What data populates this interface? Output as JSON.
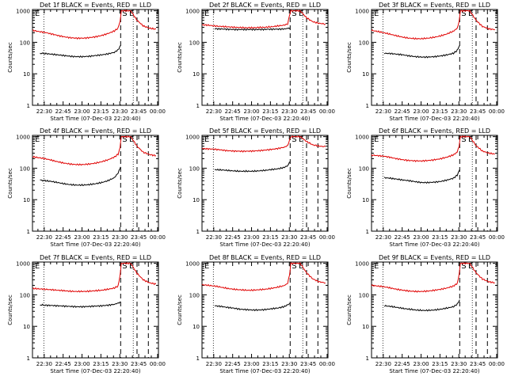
{
  "colors": {
    "events": "#000000",
    "lld": "#e00000",
    "axis": "#000000",
    "background": "#ffffff"
  },
  "common": {
    "ylabel": "Counts/sec",
    "xlabel": "Start Time (07-Dec-03 22:20:40)",
    "x_ticks": [
      "22:30",
      "22:45",
      "23:00",
      "23:15",
      "23:30",
      "23:45",
      "00:00"
    ],
    "y_ticks": [
      "1",
      "10",
      "100",
      "1000"
    ],
    "x_range_min_after_start": [
      0,
      100
    ],
    "y_range_log": [
      1,
      1100
    ],
    "marker_labels": {
      "start": "S",
      "end": "E",
      "left_edge": "E"
    }
  },
  "chart_data": [
    {
      "type": "line",
      "title": "Det 1f BLACK = Events, RED = LLD",
      "markers": {
        "dotted": [
          9,
          80
        ],
        "dashed": [
          70,
          83,
          92
        ]
      },
      "series": [
        {
          "name": "BLACK = Events",
          "x": [
            6,
            10,
            15,
            20,
            25,
            30,
            35,
            40,
            45,
            50,
            55,
            60,
            65,
            68,
            70
          ],
          "values": [
            45,
            44,
            42,
            40,
            38,
            36,
            35,
            35,
            36,
            38,
            40,
            43,
            48,
            58,
            80
          ]
        },
        {
          "name": "RED = LLD",
          "x": [
            0,
            5,
            10,
            15,
            20,
            25,
            30,
            35,
            40,
            45,
            50,
            55,
            60,
            65,
            68,
            69.5,
            70.5,
            78,
            83,
            88,
            93,
            98
          ],
          "values": [
            240,
            220,
            205,
            185,
            165,
            150,
            140,
            135,
            135,
            140,
            150,
            165,
            190,
            230,
            280,
            450,
            1000,
            1000,
            500,
            330,
            280,
            260
          ]
        }
      ]
    },
    {
      "type": "line",
      "title": "Det 2f BLACK = Events, RED = LLD",
      "markers": {
        "dotted": [
          9,
          80
        ],
        "dashed": [
          70,
          83,
          92
        ]
      },
      "series": [
        {
          "name": "BLACK = Events",
          "x": [
            10,
            15,
            20,
            25,
            30,
            35,
            40,
            45,
            50,
            55,
            60,
            65,
            68,
            70
          ],
          "values": [
            270,
            265,
            260,
            255,
            255,
            255,
            255,
            255,
            258,
            260,
            262,
            265,
            275,
            290
          ]
        },
        {
          "name": "RED = LLD",
          "x": [
            0,
            5,
            10,
            15,
            20,
            25,
            30,
            35,
            40,
            45,
            50,
            55,
            60,
            65,
            68,
            69.5,
            70.5,
            78,
            83,
            88,
            93,
            98
          ],
          "values": [
            360,
            350,
            330,
            320,
            310,
            300,
            295,
            290,
            290,
            295,
            300,
            310,
            330,
            350,
            380,
            700,
            1000,
            1000,
            600,
            450,
            400,
            380
          ]
        }
      ]
    },
    {
      "type": "line",
      "title": "Det 3f BLACK = Events, RED = LLD",
      "markers": {
        "dotted": [
          9,
          80
        ],
        "dashed": [
          70,
          83,
          92
        ]
      },
      "series": [
        {
          "name": "BLACK = Events",
          "x": [
            10,
            15,
            20,
            25,
            30,
            35,
            40,
            45,
            50,
            55,
            60,
            65,
            68,
            70
          ],
          "values": [
            45,
            44,
            42,
            40,
            37,
            35,
            34,
            34,
            35,
            37,
            40,
            45,
            55,
            80
          ]
        },
        {
          "name": "RED = LLD",
          "x": [
            0,
            5,
            10,
            15,
            20,
            25,
            30,
            35,
            40,
            45,
            50,
            55,
            60,
            65,
            68,
            69.5,
            70.5,
            78,
            83,
            88,
            93,
            98
          ],
          "values": [
            240,
            220,
            200,
            180,
            160,
            145,
            135,
            130,
            130,
            135,
            145,
            160,
            185,
            225,
            280,
            450,
            1000,
            1000,
            500,
            320,
            270,
            250
          ]
        }
      ]
    },
    {
      "type": "line",
      "title": "Det 4f BLACK = Events, RED = LLD",
      "markers": {
        "dotted": [
          9,
          80
        ],
        "dashed": [
          70,
          83,
          92
        ]
      },
      "series": [
        {
          "name": "BLACK = Events",
          "x": [
            6,
            10,
            15,
            20,
            25,
            30,
            35,
            40,
            45,
            50,
            55,
            60,
            65,
            68,
            70
          ],
          "values": [
            42,
            40,
            38,
            35,
            32,
            30,
            29,
            29,
            30,
            32,
            35,
            40,
            50,
            70,
            110
          ]
        },
        {
          "name": "RED = LLD",
          "x": [
            0,
            5,
            10,
            15,
            20,
            25,
            30,
            35,
            40,
            45,
            50,
            55,
            60,
            65,
            68,
            69.5,
            70.5,
            78,
            83,
            88,
            93,
            98
          ],
          "values": [
            230,
            215,
            200,
            180,
            160,
            145,
            135,
            130,
            130,
            135,
            145,
            160,
            185,
            225,
            280,
            450,
            1000,
            1000,
            500,
            320,
            270,
            250
          ]
        }
      ]
    },
    {
      "type": "line",
      "title": "Det 5f BLACK = Events, RED = LLD",
      "markers": {
        "dotted": [
          9,
          80
        ],
        "dashed": [
          70,
          83,
          92
        ]
      },
      "series": [
        {
          "name": "BLACK = Events",
          "x": [
            10,
            15,
            20,
            25,
            30,
            35,
            40,
            45,
            50,
            55,
            60,
            65,
            68,
            70
          ],
          "values": [
            90,
            88,
            85,
            82,
            80,
            80,
            80,
            82,
            85,
            90,
            95,
            105,
            120,
            160
          ]
        },
        {
          "name": "RED = LLD",
          "x": [
            0,
            5,
            10,
            15,
            20,
            25,
            30,
            35,
            40,
            45,
            50,
            55,
            60,
            65,
            68,
            69.5,
            70.5,
            78,
            83,
            88,
            93,
            98
          ],
          "values": [
            420,
            410,
            400,
            380,
            360,
            350,
            345,
            345,
            350,
            360,
            375,
            395,
            420,
            460,
            520,
            800,
            1000,
            1000,
            700,
            550,
            500,
            480
          ]
        }
      ]
    },
    {
      "type": "line",
      "title": "Det 6f BLACK = Events, RED = LLD",
      "markers": {
        "dotted": [
          9,
          80
        ],
        "dashed": [
          70,
          83,
          92
        ]
      },
      "series": [
        {
          "name": "BLACK = Events",
          "x": [
            10,
            15,
            20,
            25,
            30,
            35,
            40,
            45,
            50,
            55,
            60,
            65,
            68,
            70
          ],
          "values": [
            50,
            48,
            45,
            42,
            40,
            37,
            35,
            35,
            36,
            38,
            42,
            48,
            60,
            90
          ]
        },
        {
          "name": "RED = LLD",
          "x": [
            0,
            5,
            10,
            15,
            20,
            25,
            30,
            35,
            40,
            45,
            50,
            55,
            60,
            65,
            68,
            69.5,
            70.5,
            78,
            83,
            88,
            93,
            98
          ],
          "values": [
            260,
            250,
            240,
            220,
            200,
            185,
            175,
            170,
            170,
            175,
            185,
            200,
            225,
            265,
            320,
            500,
            1000,
            1000,
            520,
            350,
            300,
            280
          ]
        }
      ]
    },
    {
      "type": "line",
      "title": "Det 7f BLACK = Events, RED = LLD",
      "markers": {
        "dotted": [
          9,
          80
        ],
        "dashed": [
          70,
          83,
          92
        ]
      },
      "series": [
        {
          "name": "BLACK = Events",
          "x": [
            6,
            10,
            15,
            20,
            25,
            30,
            35,
            40,
            45,
            50,
            55,
            60,
            65,
            68,
            70
          ],
          "values": [
            48,
            47,
            46,
            45,
            44,
            43,
            42,
            42,
            43,
            44,
            45,
            47,
            50,
            55,
            60
          ]
        },
        {
          "name": "RED = LLD",
          "x": [
            0,
            5,
            10,
            15,
            20,
            25,
            30,
            35,
            40,
            45,
            50,
            55,
            60,
            65,
            68,
            69.5,
            70.5,
            78,
            83,
            88,
            93,
            98
          ],
          "values": [
            160,
            155,
            150,
            145,
            140,
            135,
            130,
            128,
            128,
            130,
            135,
            140,
            150,
            165,
            190,
            400,
            1000,
            1000,
            480,
            300,
            240,
            220
          ]
        }
      ]
    },
    {
      "type": "line",
      "title": "Det 8f BLACK = Events, RED = LLD",
      "markers": {
        "dotted": [
          9,
          80
        ],
        "dashed": [
          70,
          83,
          92
        ]
      },
      "series": [
        {
          "name": "BLACK = Events",
          "x": [
            10,
            15,
            20,
            25,
            30,
            35,
            40,
            45,
            50,
            55,
            60,
            65,
            68,
            70
          ],
          "values": [
            45,
            43,
            40,
            38,
            35,
            34,
            33,
            33,
            34,
            36,
            38,
            42,
            48,
            55
          ]
        },
        {
          "name": "RED = LLD",
          "x": [
            0,
            5,
            10,
            15,
            20,
            25,
            30,
            35,
            40,
            45,
            50,
            55,
            60,
            65,
            68,
            69.5,
            70.5,
            78,
            83,
            88,
            93,
            98
          ],
          "values": [
            210,
            200,
            190,
            175,
            160,
            150,
            145,
            140,
            140,
            145,
            150,
            160,
            175,
            195,
            230,
            420,
            1000,
            1000,
            500,
            320,
            260,
            240
          ]
        }
      ]
    },
    {
      "type": "line",
      "title": "Det 9f BLACK = Events, RED = LLD",
      "markers": {
        "dotted": [
          9,
          80
        ],
        "dashed": [
          70,
          83,
          92
        ]
      },
      "series": [
        {
          "name": "BLACK = Events",
          "x": [
            10,
            15,
            20,
            25,
            30,
            35,
            40,
            45,
            50,
            55,
            60,
            65,
            68,
            70
          ],
          "values": [
            45,
            43,
            40,
            37,
            35,
            33,
            32,
            32,
            33,
            35,
            38,
            42,
            50,
            70
          ]
        },
        {
          "name": "RED = LLD",
          "x": [
            0,
            5,
            10,
            15,
            20,
            25,
            30,
            35,
            40,
            45,
            50,
            55,
            60,
            65,
            68,
            69.5,
            70.5,
            78,
            83,
            88,
            93,
            98
          ],
          "values": [
            200,
            190,
            180,
            165,
            150,
            140,
            132,
            128,
            128,
            132,
            140,
            150,
            165,
            190,
            230,
            420,
            1000,
            1000,
            500,
            320,
            260,
            240
          ]
        }
      ]
    }
  ]
}
